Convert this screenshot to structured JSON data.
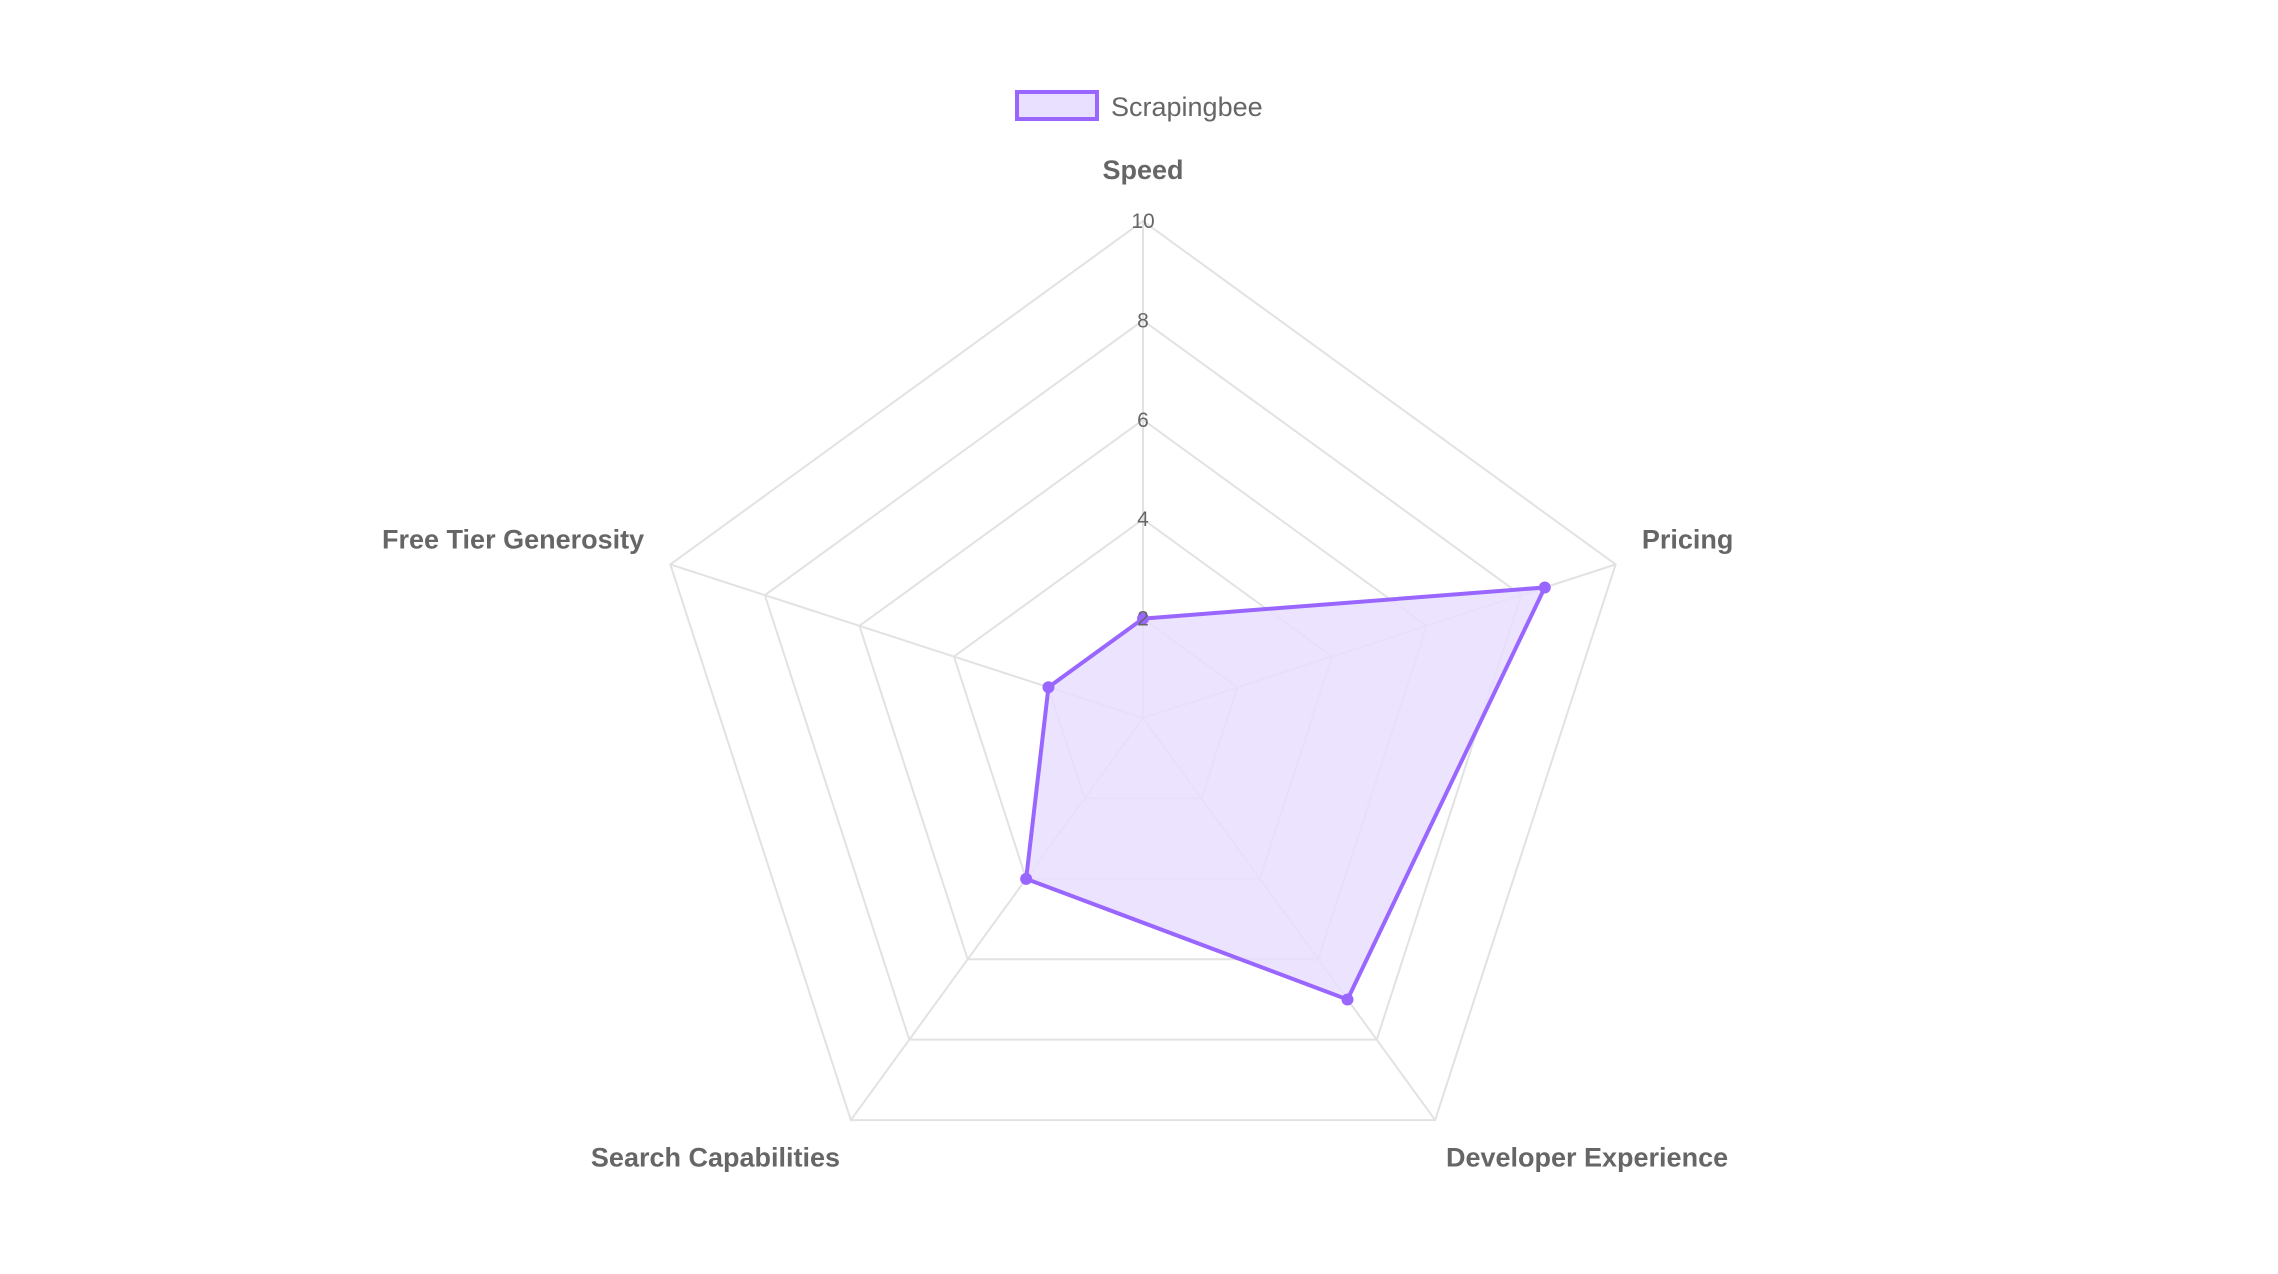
{
  "chart_data": {
    "type": "radar",
    "title": "",
    "labels": [
      "Speed",
      "Pricing",
      "Developer Experience",
      "Search Capabilities",
      "Free Tier Generosity"
    ],
    "series": [
      {
        "name": "Scrapingbee",
        "values": [
          2,
          8.5,
          7,
          4,
          2
        ],
        "color": "#9966ff",
        "fill": "#e9dfff"
      }
    ],
    "r_range": [
      0,
      10
    ],
    "ticks": [
      "2",
      "4",
      "6",
      "8",
      "10"
    ],
    "tick_values": [
      2,
      4,
      6,
      8,
      10
    ],
    "legend_position": "top",
    "grid": true
  }
}
